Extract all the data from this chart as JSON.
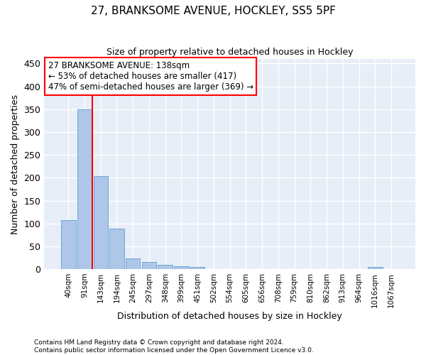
{
  "title": "27, BRANKSOME AVENUE, HOCKLEY, SS5 5PF",
  "subtitle": "Size of property relative to detached houses in Hockley",
  "xlabel": "Distribution of detached houses by size in Hockley",
  "ylabel": "Number of detached properties",
  "bin_labels": [
    "40sqm",
    "91sqm",
    "143sqm",
    "194sqm",
    "245sqm",
    "297sqm",
    "348sqm",
    "399sqm",
    "451sqm",
    "502sqm",
    "554sqm",
    "605sqm",
    "656sqm",
    "708sqm",
    "759sqm",
    "810sqm",
    "862sqm",
    "913sqm",
    "964sqm",
    "1016sqm",
    "1067sqm"
  ],
  "bar_values": [
    107,
    350,
    204,
    88,
    23,
    15,
    9,
    7,
    4,
    0,
    0,
    0,
    0,
    0,
    0,
    0,
    0,
    0,
    0,
    4,
    0
  ],
  "bar_color": "#aec6e8",
  "bar_edge_color": "#5a9fd4",
  "vline_x": 1.5,
  "vline_color": "red",
  "annotation_text": "27 BRANKSOME AVENUE: 138sqm\n← 53% of detached houses are smaller (417)\n47% of semi-detached houses are larger (369) →",
  "ylim": [
    0,
    460
  ],
  "yticks": [
    0,
    50,
    100,
    150,
    200,
    250,
    300,
    350,
    400,
    450
  ],
  "background_color": "#e8eef8",
  "grid_color": "white",
  "footer_line1": "Contains HM Land Registry data © Crown copyright and database right 2024.",
  "footer_line2": "Contains public sector information licensed under the Open Government Licence v3.0."
}
